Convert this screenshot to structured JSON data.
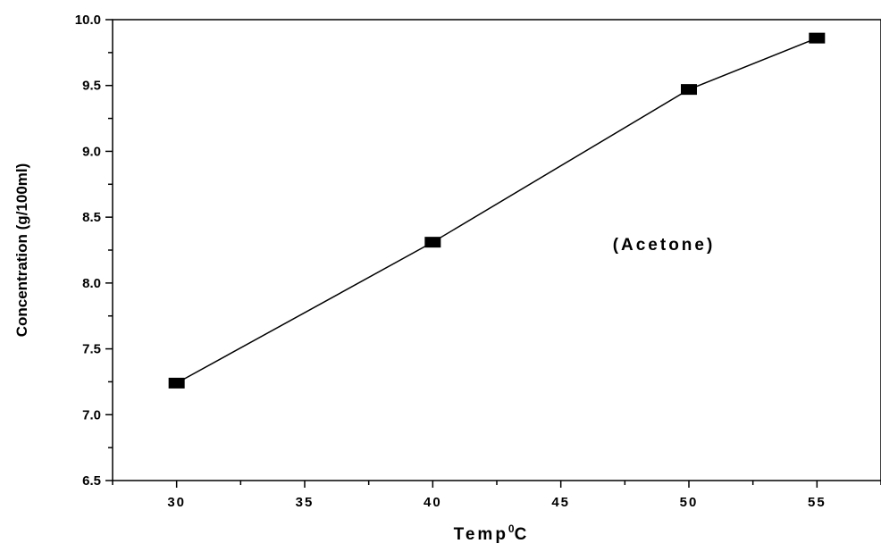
{
  "chart_data": {
    "type": "line",
    "xlabel": "Temp",
    "xlabel_superscript": "0",
    "xlabel_suffix": "C",
    "ylabel": "Concentration (g/100ml)",
    "xlim": [
      27.5,
      57.5
    ],
    "ylim": [
      6.5,
      10.0
    ],
    "x_ticks": [
      "30",
      "35",
      "40",
      "45",
      "50",
      "55"
    ],
    "y_ticks": [
      "6.5",
      "7.0",
      "7.5",
      "8.0",
      "8.5",
      "9.0",
      "9.5",
      "10.0"
    ],
    "series": [
      {
        "x": [
          30,
          40,
          50,
          55
        ],
        "y": [
          7.24,
          8.31,
          9.47,
          9.86
        ],
        "marker": "square",
        "color": "#000000"
      }
    ],
    "annotation": "(Acetone)",
    "grid": false,
    "legend": "none"
  }
}
